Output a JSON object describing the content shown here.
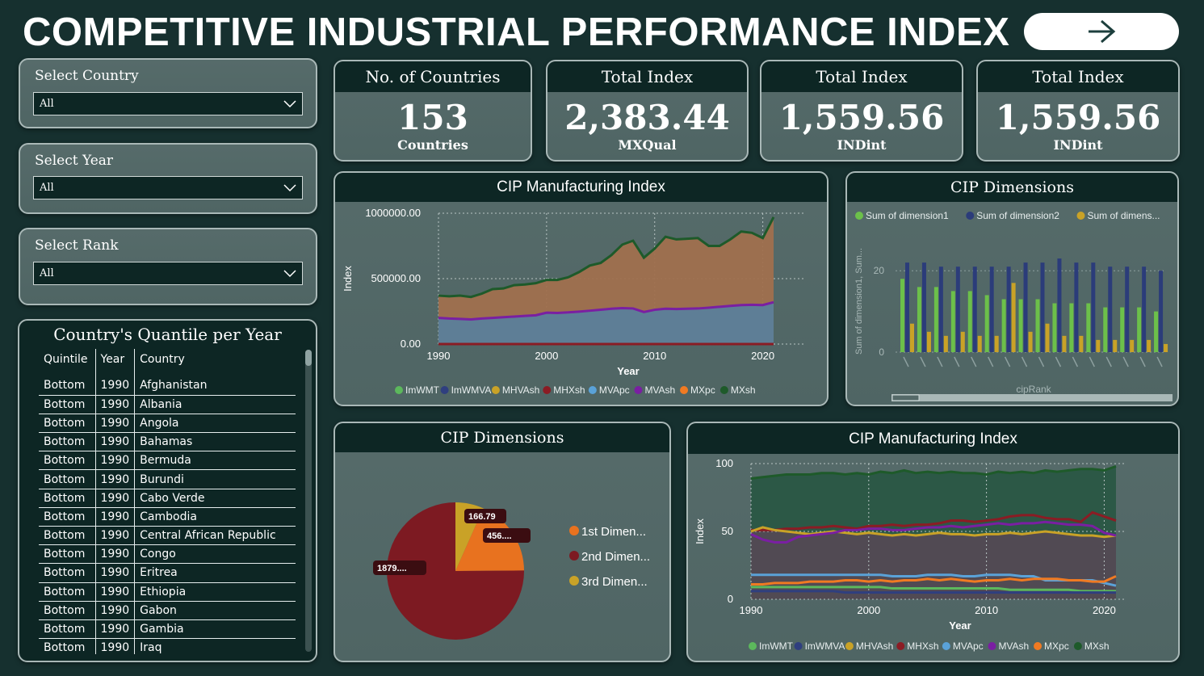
{
  "header": {
    "title": "COMPETITIVE INDUSTRIAL PERFORMANCE INDEX",
    "nav_icon": "arrow-right-icon"
  },
  "slicers": [
    {
      "label": "Select Country",
      "value": "All"
    },
    {
      "label": "Select Year",
      "value": "All"
    },
    {
      "label": "Select Rank",
      "value": "All"
    }
  ],
  "kpis": [
    {
      "title": "No. of Countries",
      "value": "153",
      "sub": "Countries"
    },
    {
      "title": "Total Index",
      "value": "2,383.44",
      "sub": "MXQual"
    },
    {
      "title": "Total Index",
      "value": "1,559.56",
      "sub": "INDint"
    },
    {
      "title": "Total Index",
      "value": "1,559.56",
      "sub": "INDint"
    }
  ],
  "quantile_table": {
    "title": "Country's Quantile per Year",
    "columns": [
      "Quintile",
      "Year",
      "Country"
    ],
    "rows": [
      [
        "Bottom",
        "1990",
        "Afghanistan"
      ],
      [
        "Bottom",
        "1990",
        "Albania"
      ],
      [
        "Bottom",
        "1990",
        "Angola"
      ],
      [
        "Bottom",
        "1990",
        "Bahamas"
      ],
      [
        "Bottom",
        "1990",
        "Bermuda"
      ],
      [
        "Bottom",
        "1990",
        "Burundi"
      ],
      [
        "Bottom",
        "1990",
        "Cabo Verde"
      ],
      [
        "Bottom",
        "1990",
        "Cambodia"
      ],
      [
        "Bottom",
        "1990",
        "Central African Republic"
      ],
      [
        "Bottom",
        "1990",
        "Congo"
      ],
      [
        "Bottom",
        "1990",
        "Eritrea"
      ],
      [
        "Bottom",
        "1990",
        "Ethiopia"
      ],
      [
        "Bottom",
        "1990",
        "Gabon"
      ],
      [
        "Bottom",
        "1990",
        "Gambia"
      ],
      [
        "Bottom",
        "1990",
        "Iraq"
      ]
    ]
  },
  "colors": {
    "ImWMT": "#5cb85c",
    "ImWMVA": "#2f3f7f",
    "MHVAsh": "#c9a227",
    "MHXsh": "#8b1c24",
    "MVApc": "#5aa2d8",
    "MVAsh": "#7a1fa2",
    "MXpc": "#f07a22",
    "MXsh": "#1e5a2a"
  },
  "chart_data": [
    {
      "type": "area",
      "title": "CIP Manufacturing Index",
      "xlabel": "Year",
      "ylabel": "Index",
      "x_ticks": [
        "1990",
        "2000",
        "2010",
        "2020"
      ],
      "y_ticks": [
        "0.00",
        "500000.00",
        "1000000.00"
      ],
      "xlim": [
        1990,
        2021
      ],
      "ylim": [
        0,
        1000000
      ],
      "legend": [
        "ImWMT",
        "ImWMVA",
        "MHVAsh",
        "MHXsh",
        "MVApc",
        "MVAsh",
        "MXpc",
        "MXsh"
      ],
      "x": [
        1990,
        1991,
        1992,
        1993,
        1994,
        1995,
        1996,
        1997,
        1998,
        1999,
        2000,
        2001,
        2002,
        2003,
        2004,
        2005,
        2006,
        2007,
        2008,
        2009,
        2010,
        2011,
        2012,
        2013,
        2014,
        2015,
        2016,
        2017,
        2018,
        2019,
        2020,
        2021
      ],
      "series": [
        {
          "name": "MXsh",
          "values": [
            370000,
            365000,
            370000,
            360000,
            385000,
            420000,
            425000,
            450000,
            455000,
            465000,
            490000,
            490000,
            510000,
            550000,
            600000,
            620000,
            680000,
            760000,
            790000,
            660000,
            730000,
            820000,
            800000,
            805000,
            810000,
            750000,
            750000,
            800000,
            860000,
            850000,
            810000,
            970000
          ]
        },
        {
          "name": "MVAsh",
          "values": [
            200000,
            195000,
            192000,
            188000,
            195000,
            200000,
            205000,
            210000,
            215000,
            220000,
            240000,
            238000,
            242000,
            248000,
            255000,
            262000,
            270000,
            275000,
            272000,
            245000,
            262000,
            270000,
            268000,
            270000,
            272000,
            278000,
            285000,
            292000,
            298000,
            300000,
            298000,
            320000
          ]
        },
        {
          "name": "MHXsh",
          "values": [
            0,
            0,
            0,
            0,
            0,
            0,
            0,
            0,
            0,
            0,
            0,
            0,
            0,
            0,
            0,
            0,
            0,
            0,
            0,
            0,
            0,
            0,
            0,
            0,
            0,
            0,
            0,
            0,
            0,
            0,
            0,
            0
          ]
        }
      ]
    },
    {
      "type": "bar",
      "title": "CIP Dimensions",
      "xlabel": "cipRank",
      "ylabel": "Sum of dimension1, Sum...",
      "y_ticks": [
        "0",
        "20"
      ],
      "ylim": [
        0,
        25
      ],
      "legend": [
        "Sum of dimension1",
        "Sum of dimension2",
        "Sum of dimens..."
      ],
      "series": [
        {
          "name": "Sum of dimension1",
          "values": [
            18,
            16,
            16,
            15,
            15,
            14,
            13,
            13,
            13,
            12,
            12,
            12,
            11,
            11,
            11,
            10
          ]
        },
        {
          "name": "Sum of dimension2",
          "values": [
            22,
            22,
            21,
            21,
            21,
            21,
            21,
            22,
            22,
            23,
            22,
            22,
            21,
            21,
            21,
            20
          ]
        },
        {
          "name": "Sum of dimens...",
          "values": [
            7,
            5,
            4,
            5,
            4,
            4,
            17,
            5,
            7,
            4,
            4,
            3,
            3,
            3,
            3,
            2
          ]
        }
      ]
    },
    {
      "type": "pie",
      "title": "CIP Dimensions",
      "legend": [
        "1st Dimen...",
        "2nd Dimen...",
        "3rd Dimen..."
      ],
      "labels": [
        "166.79",
        "456....",
        "1879...."
      ],
      "values": [
        166.79,
        456,
        1879
      ],
      "colors": [
        "#c9a227",
        "#e8721f",
        "#7d1a22"
      ]
    },
    {
      "type": "line",
      "title": "CIP Manufacturing Index",
      "xlabel": "Year",
      "ylabel": "Index",
      "x_ticks": [
        "1990",
        "2000",
        "2010",
        "2020"
      ],
      "y_ticks": [
        "0",
        "50",
        "100"
      ],
      "xlim": [
        1990,
        2021
      ],
      "ylim": [
        0,
        100
      ],
      "legend": [
        "ImWMT",
        "ImWMVA",
        "MHVAsh",
        "MHXsh",
        "MVApc",
        "MVAsh",
        "MXpc",
        "MXsh"
      ],
      "x": [
        1990,
        1991,
        1992,
        1993,
        1994,
        1995,
        1996,
        1997,
        1998,
        1999,
        2000,
        2001,
        2002,
        2003,
        2004,
        2005,
        2006,
        2007,
        2008,
        2009,
        2010,
        2011,
        2012,
        2013,
        2014,
        2015,
        2016,
        2017,
        2018,
        2019,
        2020,
        2021
      ],
      "series": [
        {
          "name": "MXsh",
          "values": [
            89,
            90,
            91,
            92,
            92,
            92,
            93,
            93,
            92,
            93,
            92,
            94,
            93,
            95,
            93,
            94,
            93,
            94,
            93,
            93,
            92,
            94,
            93,
            94,
            93,
            95,
            94,
            95,
            96,
            96,
            95,
            98
          ]
        },
        {
          "name": "MHXsh",
          "values": [
            51,
            51,
            51,
            52,
            52,
            53,
            53,
            54,
            53,
            52,
            54,
            54,
            55,
            54,
            55,
            55,
            56,
            58,
            58,
            57,
            58,
            59,
            61,
            62,
            62,
            60,
            59,
            59,
            57,
            64,
            61,
            58
          ]
        },
        {
          "name": "MHVAsh",
          "values": [
            50,
            53,
            51,
            50,
            49,
            48,
            49,
            50,
            49,
            48,
            49,
            48,
            47,
            48,
            47,
            48,
            49,
            48,
            48,
            47,
            48,
            48,
            49,
            48,
            49,
            50,
            49,
            48,
            47,
            47,
            46,
            47
          ]
        },
        {
          "name": "MVAsh",
          "values": [
            48,
            44,
            42,
            42,
            46,
            47,
            48,
            49,
            51,
            51,
            52,
            52,
            51,
            51,
            52,
            53,
            53,
            54,
            53,
            54,
            55,
            56,
            55,
            56,
            56,
            57,
            56,
            55,
            55,
            54,
            49,
            47
          ]
        },
        {
          "name": "MVApc",
          "values": [
            18,
            18,
            18,
            18,
            18,
            18,
            18,
            18,
            18,
            18,
            18,
            18,
            17,
            17,
            17,
            18,
            18,
            18,
            17,
            17,
            18,
            18,
            18,
            17,
            17,
            14,
            14,
            14,
            14,
            14,
            12,
            10
          ]
        },
        {
          "name": "MXpc",
          "values": [
            11,
            11,
            12,
            12,
            12,
            13,
            13,
            13,
            14,
            14,
            13,
            14,
            13,
            14,
            14,
            15,
            14,
            15,
            14,
            13,
            14,
            14,
            15,
            14,
            15,
            15,
            15,
            14,
            14,
            13,
            13,
            17
          ]
        },
        {
          "name": "ImWMT",
          "values": [
            9,
            9,
            9,
            9,
            9,
            9,
            9,
            9,
            9,
            9,
            9,
            9,
            8,
            8,
            8,
            8,
            8,
            8,
            8,
            8,
            8,
            8,
            7,
            7,
            7,
            7,
            7,
            7,
            6,
            6,
            6,
            6
          ]
        },
        {
          "name": "ImWMVA",
          "values": [
            6,
            6,
            6,
            6,
            6,
            6,
            6,
            6,
            5,
            5,
            5,
            5,
            5,
            5,
            5,
            5,
            5,
            5,
            5,
            5,
            5,
            5,
            5,
            5,
            5,
            5,
            5,
            5,
            5,
            5,
            5,
            5
          ]
        }
      ]
    }
  ]
}
